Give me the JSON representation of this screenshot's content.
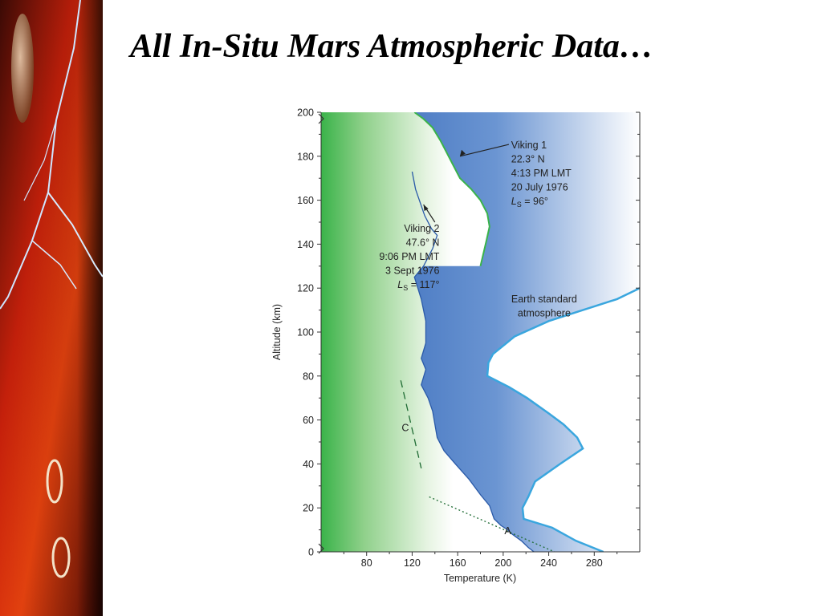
{
  "slide": {
    "title": "All In-Situ Mars Atmospheric Data…"
  },
  "colors": {
    "mars_green": "#3ab34a",
    "viking1_blue": "#2f64b7",
    "earth_line": "#3aa6de",
    "viking2_line": "#2a5aa8"
  },
  "chart_data": {
    "type": "line",
    "title": "",
    "xlabel": "Temperature (K)",
    "ylabel": "Altitude (km)",
    "xlim": [
      40,
      320
    ],
    "ylim": [
      0,
      200
    ],
    "x_ticks": [
      80,
      120,
      160,
      200,
      240,
      280
    ],
    "y_ticks": [
      0,
      20,
      40,
      60,
      80,
      100,
      120,
      140,
      160,
      180,
      200
    ],
    "grid": false,
    "series": [
      {
        "name": "Viking 1",
        "points": [
          [
            180,
            130
          ],
          [
            185,
            141
          ],
          [
            188,
            148
          ],
          [
            186,
            154
          ],
          [
            180,
            160
          ],
          [
            172,
            165
          ],
          [
            162,
            170
          ],
          [
            156,
            176
          ],
          [
            150,
            182
          ],
          [
            145,
            187
          ],
          [
            138,
            193
          ],
          [
            130,
            197
          ],
          [
            122,
            200
          ]
        ],
        "annotation": [
          "Viking 1",
          "22.3° N",
          "4:13 PM LMT",
          "20 July 1976",
          "LS = 96°"
        ]
      },
      {
        "name": "Viking 2",
        "points": [
          [
            120,
            173
          ],
          [
            123,
            165
          ],
          [
            131,
            153
          ],
          [
            137,
            147
          ],
          [
            142,
            144
          ],
          [
            138,
            138
          ],
          [
            130,
            130
          ],
          [
            122,
            125
          ],
          [
            125,
            120
          ],
          [
            128,
            115
          ],
          [
            132,
            105
          ],
          [
            132,
            95
          ],
          [
            128,
            88
          ],
          [
            132,
            83
          ],
          [
            128,
            76
          ],
          [
            134,
            70
          ],
          [
            138,
            64
          ],
          [
            140,
            58
          ],
          [
            142,
            52
          ],
          [
            148,
            46
          ],
          [
            158,
            40
          ],
          [
            170,
            33
          ],
          [
            180,
            26
          ],
          [
            188,
            21
          ],
          [
            192,
            15
          ],
          [
            198,
            12
          ],
          [
            204,
            10
          ],
          [
            208,
            8
          ],
          [
            216,
            5
          ],
          [
            222,
            2
          ],
          [
            227,
            0
          ]
        ],
        "annotation": [
          "Viking 2",
          "47.6° N",
          "9:06 PM LMT",
          "3 Sept 1976",
          "LS = 117°"
        ]
      },
      {
        "name": "Earth standard atmosphere",
        "points": [
          [
            288,
            0
          ],
          [
            264,
            5
          ],
          [
            243,
            11
          ],
          [
            218,
            15
          ],
          [
            217,
            20
          ],
          [
            222,
            25
          ],
          [
            228,
            32
          ],
          [
            250,
            40
          ],
          [
            270,
            47
          ],
          [
            265,
            52
          ],
          [
            253,
            58
          ],
          [
            240,
            63
          ],
          [
            221,
            70
          ],
          [
            205,
            75
          ],
          [
            186,
            80
          ],
          [
            187,
            86
          ],
          [
            191,
            90
          ],
          [
            210,
            98
          ],
          [
            240,
            105
          ],
          [
            270,
            110
          ],
          [
            300,
            115
          ],
          [
            320,
            120
          ]
        ],
        "annotation": [
          "Earth standard",
          "atmosphere"
        ]
      }
    ],
    "reference_lines": [
      {
        "label": "A",
        "points": [
          [
            135,
            25
          ],
          [
            245,
            0
          ]
        ]
      },
      {
        "label": "C",
        "points": [
          [
            110,
            78
          ],
          [
            128,
            38
          ]
        ]
      }
    ]
  }
}
